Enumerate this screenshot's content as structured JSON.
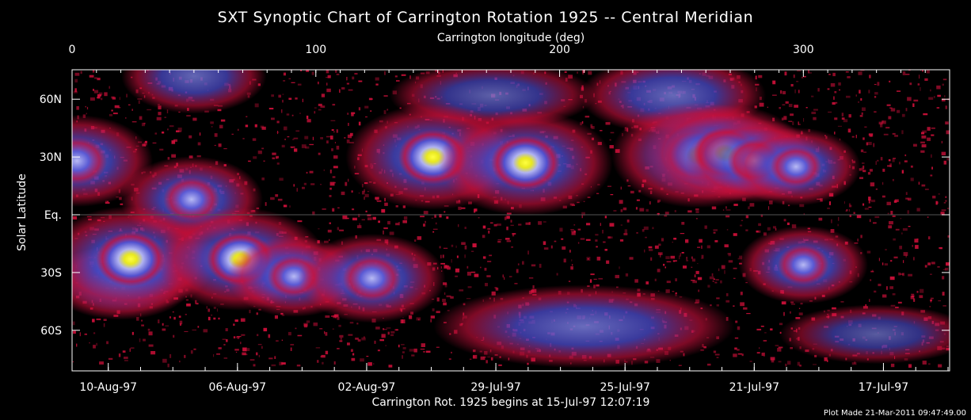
{
  "chart_data": {
    "type": "heatmap",
    "title": "SXT Synoptic Chart of Carrington Rotation 1925 -- Central Meridian",
    "top_axis_label": "Carrington longitude (deg)",
    "left_axis_label": "Solar Latitude",
    "bottom_axis_label": "Carrington Rot. 1925 begins at 15-Jul-97 12:07:19",
    "credit": "Plot Made 21-Mar-2011 09:47:49.00",
    "longitude_range": [
      0,
      360
    ],
    "top_ticks": [
      {
        "value": 0,
        "label": "0"
      },
      {
        "value": 100,
        "label": "100"
      },
      {
        "value": 200,
        "label": "200"
      },
      {
        "value": 300,
        "label": "300"
      }
    ],
    "latitude_ticks": [
      {
        "value": 60,
        "label": "60N"
      },
      {
        "value": 30,
        "label": "30N"
      },
      {
        "value": 0,
        "label": "Eq."
      },
      {
        "value": -30,
        "label": "30S"
      },
      {
        "value": -60,
        "label": "60S"
      }
    ],
    "date_ticks": [
      {
        "longitude": 9,
        "label": "10-Aug-97"
      },
      {
        "longitude": 62,
        "label": "06-Aug-97"
      },
      {
        "longitude": 115,
        "label": "02-Aug-97"
      },
      {
        "longitude": 168,
        "label": "29-Jul-97"
      },
      {
        "longitude": 221,
        "label": "25-Jul-97"
      },
      {
        "longitude": 274,
        "label": "21-Jul-97"
      },
      {
        "longitude": 327,
        "label": "17-Jul-97"
      }
    ],
    "colors": {
      "background": "#000000",
      "faint": "#d0103a",
      "low": "#4a4acc",
      "medium": "#a8aaf0",
      "bright": "#f0f020",
      "axes": "#ffffff"
    },
    "bright_regions": [
      {
        "longitude": 2,
        "latitude": 28,
        "intensity": 0.75
      },
      {
        "longitude": 49,
        "latitude": 8,
        "intensity": 0.65
      },
      {
        "longitude": 24,
        "latitude": -23,
        "intensity": 1.0
      },
      {
        "longitude": 69,
        "latitude": -23,
        "intensity": 0.95
      },
      {
        "longitude": 91,
        "latitude": -32,
        "intensity": 0.55
      },
      {
        "longitude": 123,
        "latitude": -33,
        "intensity": 0.7
      },
      {
        "longitude": 148,
        "latitude": 30,
        "intensity": 1.0
      },
      {
        "longitude": 186,
        "latitude": 27,
        "intensity": 1.0
      },
      {
        "longitude": 257,
        "latitude": 31,
        "intensity": 1.0
      },
      {
        "longitude": 268,
        "latitude": 32,
        "intensity": 0.85
      },
      {
        "longitude": 280,
        "latitude": 28,
        "intensity": 0.6
      },
      {
        "longitude": 297,
        "latitude": 25,
        "intensity": 0.5
      },
      {
        "longitude": 300,
        "latitude": -26,
        "intensity": 0.5
      }
    ],
    "diffuse_bands": [
      {
        "lon_start": 30,
        "lon_end": 70,
        "latitude": 72,
        "intensity": 0.55
      },
      {
        "lon_start": 140,
        "lon_end": 205,
        "latitude": 62,
        "intensity": 0.45
      },
      {
        "lon_start": 218,
        "lon_end": 275,
        "latitude": 62,
        "intensity": 0.6
      },
      {
        "lon_start": 158,
        "lon_end": 262,
        "latitude": -58,
        "intensity": 0.65
      },
      {
        "lon_start": 0,
        "lon_end": 40,
        "latitude": -35,
        "intensity": 0.55
      },
      {
        "lon_start": 300,
        "lon_end": 360,
        "latitude": -62,
        "intensity": 0.35
      }
    ]
  }
}
